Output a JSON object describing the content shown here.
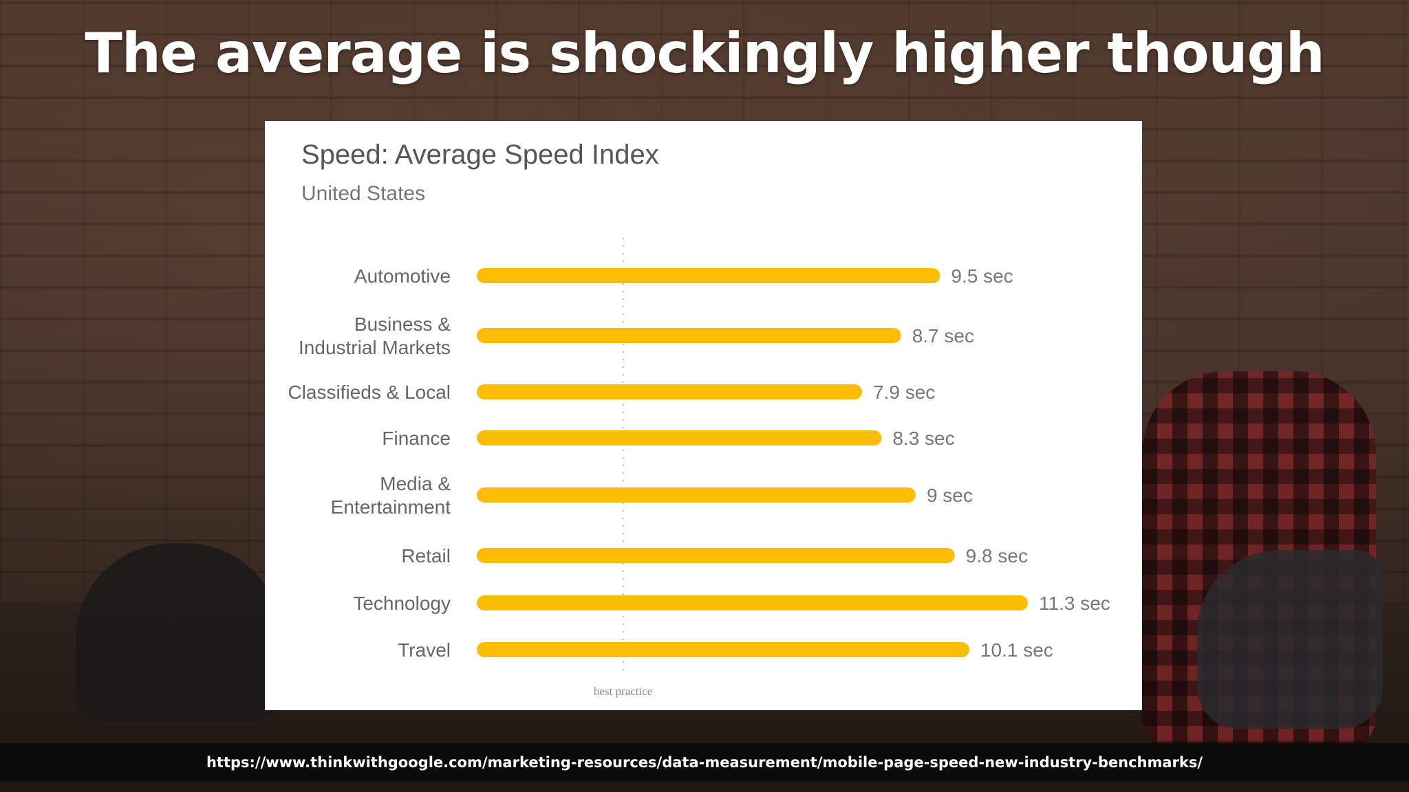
{
  "slide": {
    "title": "The average is shockingly higher though",
    "source_url": "https://www.thinkwithgoogle.com/marketing-resources/data-measurement/mobile-page-speed-new-industry-benchmarks/"
  },
  "chart_data": {
    "type": "bar",
    "orientation": "horizontal",
    "title": "Speed: Average Speed Index",
    "subtitle": "United States",
    "categories": [
      [
        "Automotive"
      ],
      [
        "Business &",
        "Industrial Markets"
      ],
      [
        "Classifieds & Local"
      ],
      [
        "Finance"
      ],
      [
        "Media &",
        "Entertainment"
      ],
      [
        "Retail"
      ],
      [
        "Technology"
      ],
      [
        "Travel"
      ]
    ],
    "values": [
      9.5,
      8.7,
      7.9,
      8.3,
      9,
      9.8,
      11.3,
      10.1
    ],
    "value_labels": [
      "9.5 sec",
      "8.7 sec",
      "7.9 sec",
      "8.3 sec",
      "9 sec",
      "9.8 sec",
      "11.3 sec",
      "10.1 sec"
    ],
    "unit": "sec",
    "xlim": [
      0,
      11.3
    ],
    "reference_line": {
      "value": 3,
      "label": "best practice"
    },
    "bar_color": "#FBBC05",
    "grid": false,
    "legend": "none"
  }
}
